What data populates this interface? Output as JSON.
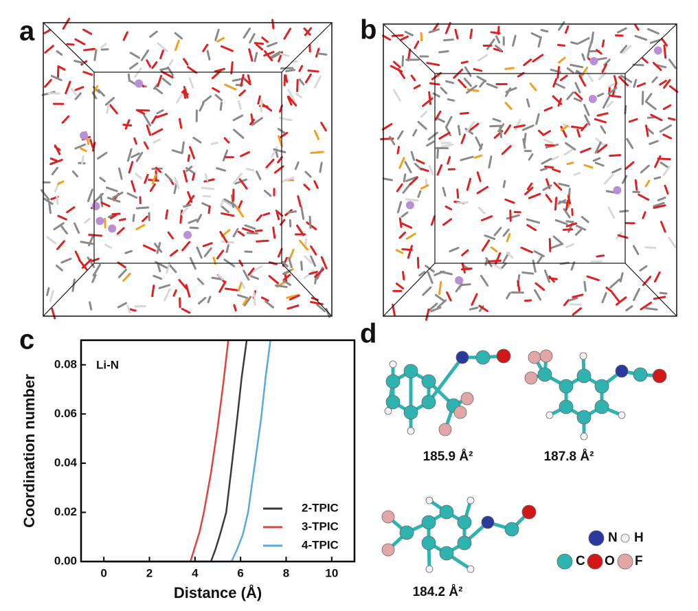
{
  "panel_labels": [
    "a",
    "b",
    "c",
    "d"
  ],
  "chart_data": {
    "type": "line",
    "annotation": "Li-N",
    "x_label": "Distance (Å)",
    "y_label": "Coordination number",
    "xlim": [
      -1,
      11
    ],
    "xticks": [
      0,
      2,
      4,
      6,
      8,
      10
    ],
    "ylim": [
      0,
      0.09
    ],
    "yticks": [
      {
        "value": 0,
        "label": "0.00"
      },
      0.02,
      0.04,
      0.06,
      0.08
    ],
    "legend": "lower right",
    "series": [
      {
        "name": "2-TPIC",
        "color": "#3a3a3a",
        "x": [
          0,
          4.7,
          4.9,
          5.1,
          5.37,
          5.6,
          5.85,
          6.05,
          6.27
        ],
        "values": [
          0,
          0,
          0.005,
          0.011,
          0.02,
          0.038,
          0.058,
          0.075,
          0.09
        ]
      },
      {
        "name": "3-TPIC",
        "color": "#e0413e",
        "x": [
          0,
          3.8,
          4.0,
          4.2,
          4.39,
          4.7,
          5.0,
          5.25,
          5.46
        ],
        "values": [
          0,
          0,
          0.006,
          0.012,
          0.02,
          0.036,
          0.055,
          0.073,
          0.09
        ]
      },
      {
        "name": "4-TPIC",
        "color": "#5aa9dc",
        "x": [
          0,
          5.6,
          5.85,
          6.1,
          6.33,
          6.6,
          6.9,
          7.1,
          7.31
        ],
        "values": [
          0,
          0,
          0.005,
          0.011,
          0.02,
          0.038,
          0.058,
          0.075,
          0.09
        ]
      }
    ]
  },
  "molecules": {
    "areas": [
      "185.9 Å²",
      "187.8 Å²",
      "184.2 Å²"
    ],
    "atom_legend": [
      "N",
      "H",
      "C",
      "O",
      "F"
    ]
  }
}
